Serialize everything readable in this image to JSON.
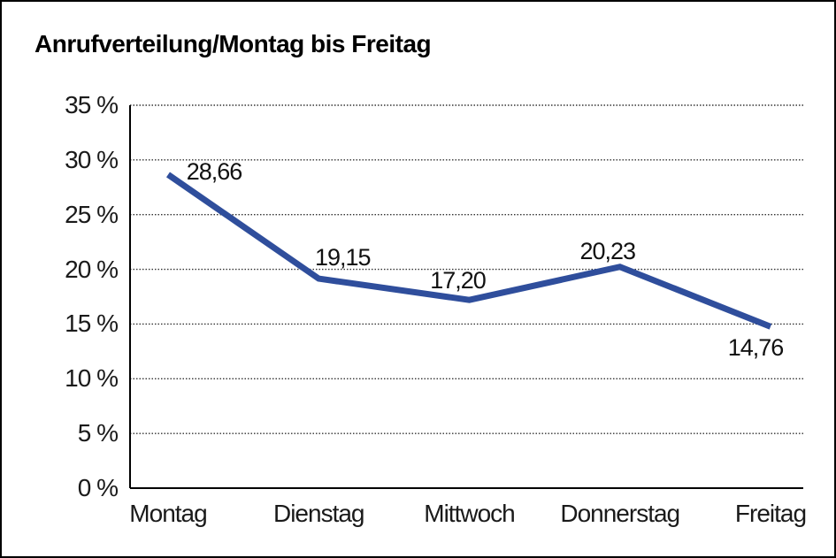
{
  "chart_data": {
    "type": "line",
    "title": "Anrufverteilung/Montag bis Freitag",
    "categories": [
      "Montag",
      "Dienstag",
      "Mittwoch",
      "Donnerstag",
      "Freitag"
    ],
    "values": [
      28.66,
      19.15,
      17.2,
      20.23,
      14.76
    ],
    "value_labels": [
      "28,66",
      "19,15",
      "17,20",
      "20,23",
      "14,76"
    ],
    "y_ticks": [
      0,
      5,
      10,
      15,
      20,
      25,
      30,
      35
    ],
    "y_tick_labels": [
      "0 %",
      "5 %",
      "10 %",
      "15 %",
      "20 %",
      "25 %",
      "30 %",
      "35 %"
    ],
    "ylim": [
      0,
      35
    ],
    "xlabel": "",
    "ylabel": "",
    "legend": "none",
    "grid": "horizontal-dotted",
    "line_color": "#2F4E9C",
    "background_color": "#FFFFFF",
    "border_color": "#000000"
  }
}
